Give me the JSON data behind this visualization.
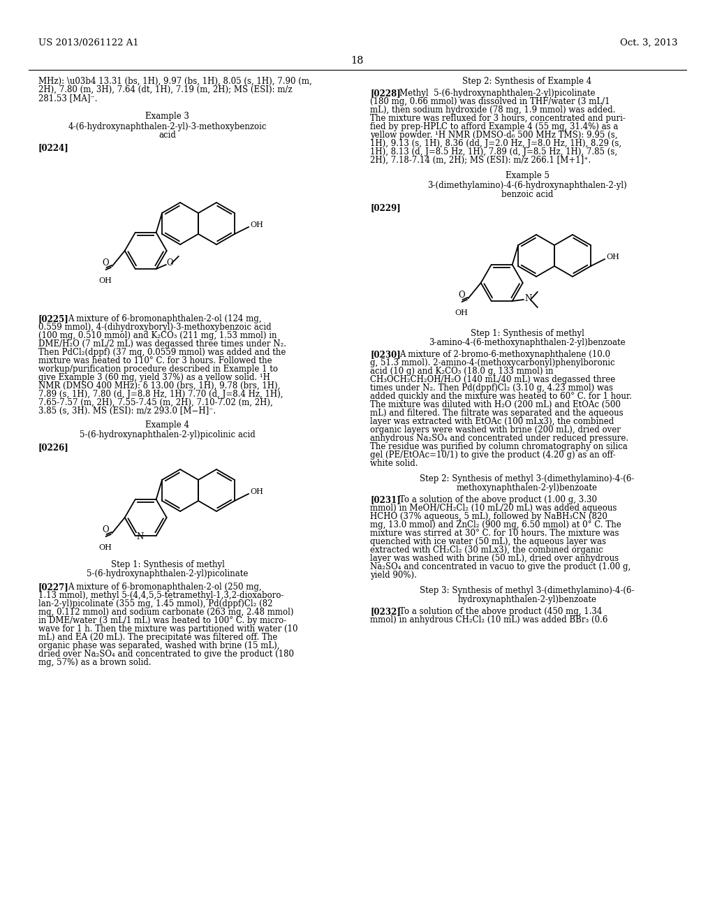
{
  "patent_number": "US 2013/0261122 A1",
  "patent_date": "Oct. 3, 2013",
  "page_number": "18",
  "background_color": "#ffffff",
  "text_color": "#000000"
}
